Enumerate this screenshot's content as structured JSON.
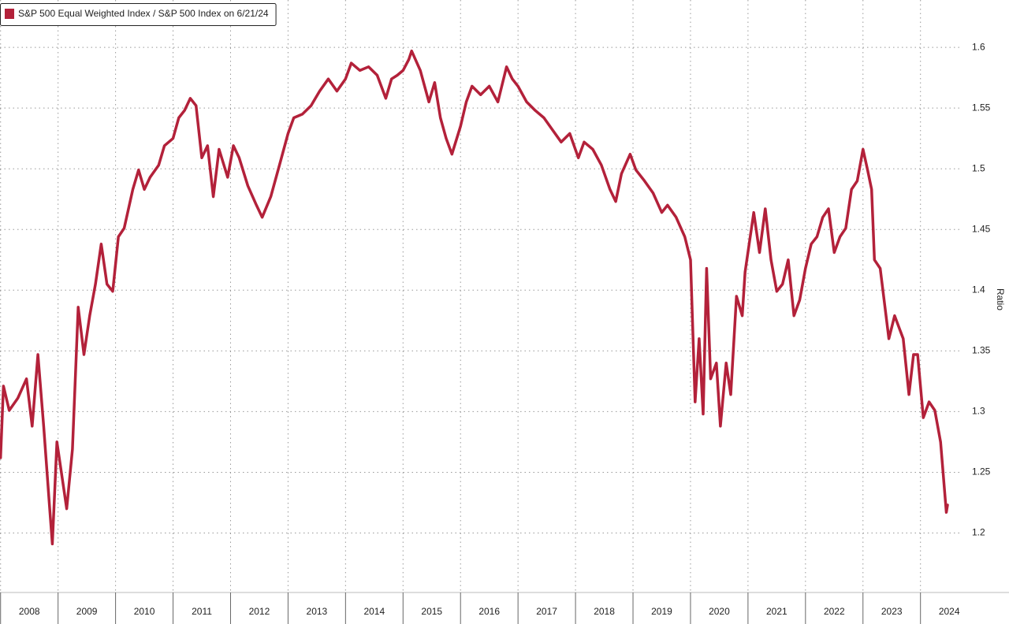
{
  "chart_data": {
    "type": "line",
    "ylabel": "Ratio",
    "x": [
      2008.0,
      2008.05,
      2008.15,
      2008.3,
      2008.45,
      2008.55,
      2008.65,
      2008.75,
      2008.85,
      2008.9,
      2008.98,
      2009.1,
      2009.15,
      2009.25,
      2009.35,
      2009.45,
      2009.55,
      2009.65,
      2009.75,
      2009.85,
      2009.95,
      2010.05,
      2010.15,
      2010.3,
      2010.4,
      2010.5,
      2010.6,
      2010.75,
      2010.85,
      2011.0,
      2011.1,
      2011.2,
      2011.3,
      2011.4,
      2011.5,
      2011.6,
      2011.7,
      2011.8,
      2011.95,
      2012.05,
      2012.15,
      2012.3,
      2012.45,
      2012.55,
      2012.7,
      2012.85,
      2013.0,
      2013.1,
      2013.25,
      2013.4,
      2013.55,
      2013.7,
      2013.85,
      2014.0,
      2014.1,
      2014.25,
      2014.4,
      2014.55,
      2014.7,
      2014.8,
      2014.9,
      2015.0,
      2015.1,
      2015.15,
      2015.3,
      2015.45,
      2015.55,
      2015.65,
      2015.75,
      2015.85,
      2016.0,
      2016.1,
      2016.2,
      2016.35,
      2016.5,
      2016.65,
      2016.8,
      2016.9,
      2017.0,
      2017.15,
      2017.3,
      2017.45,
      2017.6,
      2017.75,
      2017.9,
      2018.05,
      2018.15,
      2018.3,
      2018.45,
      2018.6,
      2018.7,
      2018.8,
      2018.95,
      2019.05,
      2019.2,
      2019.35,
      2019.5,
      2019.6,
      2019.75,
      2019.9,
      2020.0,
      2020.08,
      2020.15,
      2020.22,
      2020.28,
      2020.35,
      2020.45,
      2020.52,
      2020.62,
      2020.7,
      2020.8,
      2020.9,
      2020.95,
      2021.1,
      2021.2,
      2021.3,
      2021.4,
      2021.5,
      2021.6,
      2021.7,
      2021.8,
      2021.9,
      2022.0,
      2022.1,
      2022.2,
      2022.3,
      2022.4,
      2022.5,
      2022.6,
      2022.7,
      2022.8,
      2022.9,
      2023.0,
      2023.08,
      2023.15,
      2023.2,
      2023.3,
      2023.45,
      2023.55,
      2023.7,
      2023.8,
      2023.88,
      2023.95,
      2024.05,
      2024.15,
      2024.25,
      2024.35,
      2024.45,
      2024.47
    ],
    "series": [
      {
        "name": "S&P 500 Equal Weighted Index / S&P 500 Index on 6/21/24",
        "color": "#b3213a",
        "values": [
          1.262,
          1.321,
          1.301,
          1.311,
          1.327,
          1.288,
          1.347,
          1.288,
          1.223,
          1.191,
          1.275,
          1.236,
          1.22,
          1.269,
          1.386,
          1.347,
          1.379,
          1.405,
          1.438,
          1.405,
          1.399,
          1.444,
          1.451,
          1.483,
          1.499,
          1.483,
          1.493,
          1.503,
          1.519,
          1.525,
          1.542,
          1.548,
          1.558,
          1.552,
          1.509,
          1.519,
          1.477,
          1.516,
          1.493,
          1.519,
          1.509,
          1.486,
          1.47,
          1.46,
          1.477,
          1.503,
          1.529,
          1.542,
          1.545,
          1.552,
          1.564,
          1.574,
          1.564,
          1.574,
          1.587,
          1.581,
          1.584,
          1.577,
          1.558,
          1.574,
          1.577,
          1.581,
          1.59,
          1.597,
          1.581,
          1.555,
          1.571,
          1.542,
          1.525,
          1.512,
          1.535,
          1.555,
          1.568,
          1.561,
          1.568,
          1.555,
          1.584,
          1.574,
          1.568,
          1.555,
          1.548,
          1.542,
          1.532,
          1.522,
          1.529,
          1.509,
          1.522,
          1.516,
          1.503,
          1.483,
          1.473,
          1.496,
          1.512,
          1.499,
          1.49,
          1.48,
          1.464,
          1.47,
          1.46,
          1.444,
          1.425,
          1.308,
          1.36,
          1.298,
          1.418,
          1.327,
          1.34,
          1.288,
          1.34,
          1.314,
          1.395,
          1.379,
          1.415,
          1.464,
          1.431,
          1.467,
          1.425,
          1.399,
          1.405,
          1.425,
          1.379,
          1.392,
          1.418,
          1.438,
          1.444,
          1.46,
          1.467,
          1.431,
          1.444,
          1.451,
          1.483,
          1.49,
          1.516,
          1.499,
          1.483,
          1.425,
          1.418,
          1.36,
          1.379,
          1.36,
          1.314,
          1.347,
          1.347,
          1.295,
          1.308,
          1.301,
          1.275,
          1.217,
          1.223
        ]
      }
    ],
    "xlim": [
      2007.99,
      2024.58
    ],
    "xticks": [
      2008,
      2009,
      2010,
      2011,
      2012,
      2013,
      2014,
      2015,
      2016,
      2017,
      2018,
      2019,
      2020,
      2021,
      2022,
      2023,
      2024
    ],
    "ylim": [
      1.151,
      1.639
    ],
    "yticks": [
      1.2,
      1.25,
      1.3,
      1.35,
      1.4,
      1.45,
      1.5,
      1.55,
      1.6
    ],
    "grid": true,
    "legend": "top-left"
  }
}
